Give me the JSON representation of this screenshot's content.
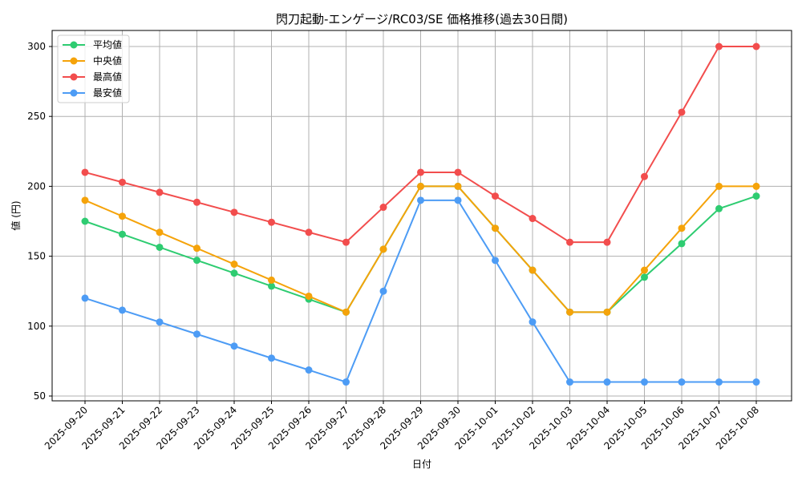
{
  "chart_data": {
    "type": "line",
    "title": "閃刀起動-エンゲージ/RC03/SE 価格推移(過去30日間)",
    "xlabel": "日付",
    "ylabel": "値 (円)",
    "ylim": [
      48,
      312
    ],
    "yticks": [
      50,
      100,
      150,
      200,
      250,
      300
    ],
    "grid": true,
    "legend_position": "upper left",
    "x": [
      "2025-09-20",
      "2025-09-21",
      "2025-09-22",
      "2025-09-23",
      "2025-09-24",
      "2025-09-25",
      "2025-09-26",
      "2025-09-27",
      "2025-09-28",
      "2025-09-29",
      "2025-09-30",
      "2025-10-01",
      "2025-10-02",
      "2025-10-03",
      "2025-10-04",
      "2025-10-05",
      "2025-10-06",
      "2025-10-07",
      "2025-10-08"
    ],
    "series": [
      {
        "name": "平均値",
        "color": "#2ecc71",
        "values": [
          175,
          165.7,
          156.4,
          147.1,
          137.9,
          128.6,
          119.3,
          110,
          155,
          200,
          200,
          170,
          140,
          110,
          110,
          135,
          159,
          184,
          193
        ]
      },
      {
        "name": "中央値",
        "color": "#f5a30a",
        "values": [
          190,
          178.6,
          167.1,
          155.7,
          144.3,
          132.9,
          121.4,
          110,
          155,
          200,
          200,
          170,
          140,
          110,
          110,
          140,
          170,
          200,
          200
        ]
      },
      {
        "name": "最高値",
        "color": "#f24d4d",
        "values": [
          210,
          202.9,
          195.7,
          188.6,
          181.4,
          174.3,
          167.1,
          160,
          185,
          210,
          210,
          193,
          177,
          160,
          160,
          207,
          253,
          300,
          300
        ]
      },
      {
        "name": "最安値",
        "color": "#4d9cf5",
        "values": [
          120,
          111.4,
          102.9,
          94.3,
          85.7,
          77.1,
          68.6,
          60,
          125,
          190,
          190,
          147,
          103,
          60,
          60,
          60,
          60,
          60,
          60
        ]
      }
    ]
  }
}
